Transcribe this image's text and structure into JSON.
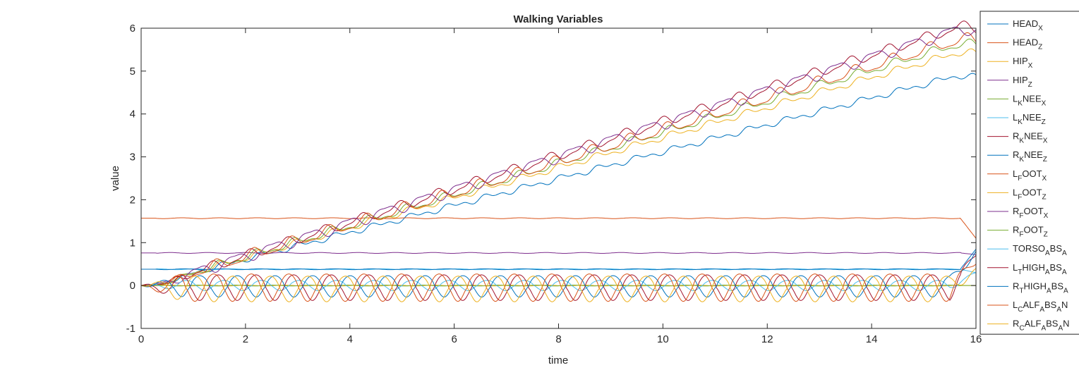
{
  "chart_data": {
    "type": "line",
    "title": "Walking Variables",
    "xlabel": "time",
    "ylabel": "value",
    "xlim": [
      0,
      16
    ],
    "ylim": [
      -1,
      6
    ],
    "xticks": [
      0,
      2,
      4,
      6,
      8,
      10,
      12,
      14,
      16
    ],
    "yticks": [
      -1,
      0,
      1,
      2,
      3,
      4,
      5,
      6
    ],
    "grid": false,
    "legend_position": "right-outside",
    "series": [
      {
        "name": "HEADX",
        "label_main": "HEAD",
        "label_sub": "X",
        "color": "#0072BD",
        "kind": "progress",
        "start": 0,
        "end": 4.85,
        "amplitude": 0.05,
        "phase": 0.0
      },
      {
        "name": "HEADZ",
        "label_main": "HEAD",
        "label_sub": "Z",
        "color": "#D95319",
        "kind": "constant",
        "start": 0,
        "base": 1.57,
        "end": 1.1
      },
      {
        "name": "HIPX",
        "label_main": "HIP",
        "label_sub": "X",
        "color": "#EDB120",
        "kind": "progress",
        "start": 0,
        "end": 5.4,
        "amplitude": 0.06,
        "phase": 0.5
      },
      {
        "name": "HIPZ",
        "label_main": "HIP",
        "label_sub": "Z",
        "color": "#7E2F8E",
        "kind": "constant",
        "start": 0,
        "base": 0.76,
        "end": 0.72
      },
      {
        "name": "LKNEEX",
        "label_main": "L",
        "label_sub": "K",
        "label_rest": "NEE",
        "label_sub2": "X",
        "color": "#77AC30",
        "kind": "progress",
        "start": 0,
        "end": 5.6,
        "amplitude": 0.08,
        "phase": 1.0
      },
      {
        "name": "LKNEEZ",
        "label_main": "L",
        "label_sub": "K",
        "label_rest": "NEE",
        "label_sub2": "Z",
        "color": "#4DBEEE",
        "kind": "constant",
        "start": 0,
        "base": 0.38,
        "end": 0.3
      },
      {
        "name": "RKNEEX",
        "label_main": "R",
        "label_sub": "K",
        "label_rest": "NEE",
        "label_sub2": "X",
        "color": "#A2142F",
        "kind": "progress",
        "start": 0,
        "end": 6.0,
        "amplitude": 0.1,
        "phase": 2.5
      },
      {
        "name": "RKNEEZ",
        "label_main": "R",
        "label_sub": "K",
        "label_rest": "NEE",
        "label_sub2": "Z",
        "color": "#0072BD",
        "kind": "constant",
        "start": 0,
        "base": 0.38,
        "end": 0.85
      },
      {
        "name": "LFOOTX",
        "label_main": "L",
        "label_sub": "F",
        "label_rest": "OOT",
        "label_sub2": "X",
        "color": "#D95319",
        "kind": "progress",
        "start": 0,
        "end": 5.7,
        "amplitude": 0.12,
        "phase": 1.6
      },
      {
        "name": "LFOOTZ",
        "label_main": "L",
        "label_sub": "F",
        "label_rest": "OOT",
        "label_sub2": "Z",
        "color": "#EDB120",
        "kind": "constant",
        "start": 0,
        "base": 0.0,
        "end": 0.0
      },
      {
        "name": "RFOOTX",
        "label_main": "R",
        "label_sub": "F",
        "label_rest": "OOT",
        "label_sub2": "X",
        "color": "#7E2F8E",
        "kind": "progress",
        "start": 0,
        "end": 5.95,
        "amplitude": 0.12,
        "phase": 4.7
      },
      {
        "name": "RFOOTZ",
        "label_main": "R",
        "label_sub": "F",
        "label_rest": "OOT",
        "label_sub2": "Z",
        "color": "#77AC30",
        "kind": "constant",
        "start": 0,
        "base": 0.0,
        "end": 0.0
      },
      {
        "name": "TORSOABSA",
        "label_main": "TORSO",
        "label_sub": "A",
        "label_rest": "BS",
        "label_sub2": "A",
        "color": "#4DBEEE",
        "kind": "oscillate",
        "start": 0,
        "mean": 0.0,
        "amplitude": 0.12,
        "phase": 0.3,
        "end": 0.3
      },
      {
        "name": "LTHIGHABSA",
        "label_main": "L",
        "label_sub": "T",
        "label_rest": "HIGH",
        "label_sub2": "A",
        "label_rest2": "BS",
        "label_sub3": "A",
        "color": "#A2142F",
        "kind": "oscillate",
        "start": 0,
        "mean": -0.05,
        "amplitude": 0.3,
        "phase": 1.2,
        "end": 0.7
      },
      {
        "name": "RTHIGHABSA",
        "label_main": "R",
        "label_sub": "T",
        "label_rest": "HIGH",
        "label_sub2": "A",
        "label_rest2": "BS",
        "label_sub3": "A",
        "color": "#0072BD",
        "kind": "oscillate",
        "start": 0,
        "mean": -0.02,
        "amplitude": 0.25,
        "phase": 4.3,
        "end": 0.8
      },
      {
        "name": "LCALFABSAN",
        "label_main": "L",
        "label_sub": "C",
        "label_rest": "ALF",
        "label_sub2": "A",
        "label_rest2": "BS",
        "label_sub3": "A",
        "label_rest3": "N",
        "color": "#D95319",
        "kind": "oscillate",
        "start": 0,
        "mean": -0.05,
        "amplitude": 0.32,
        "phase": 2.0,
        "end": 0.5
      },
      {
        "name": "RCALFABSAN",
        "label_main": "R",
        "label_sub": "C",
        "label_rest": "ALF",
        "label_sub2": "A",
        "label_rest2": "BS",
        "label_sub3": "A",
        "label_rest3": "N",
        "color": "#EDB120",
        "kind": "oscillate",
        "start": 0,
        "mean": -0.08,
        "amplitude": 0.3,
        "phase": 5.1,
        "end": 0.4
      }
    ]
  }
}
